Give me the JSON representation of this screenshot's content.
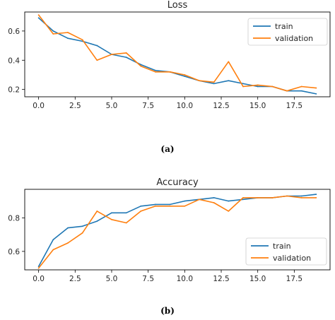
{
  "chart_data": [
    {
      "type": "line",
      "title": "Loss",
      "xlabel": "",
      "ylabel": "",
      "xlim": [
        -0.95,
        19.95
      ],
      "ylim": [
        0.15,
        0.73
      ],
      "xticks": [
        0.0,
        2.5,
        5.0,
        7.5,
        10.0,
        12.5,
        15.0,
        17.5
      ],
      "xtick_labels": [
        "0.0",
        "2.5",
        "5.0",
        "7.5",
        "10.0",
        "12.5",
        "15.0",
        "17.5"
      ],
      "yticks": [
        0.2,
        0.4,
        0.6
      ],
      "ytick_labels": [
        "0.2",
        "0.4",
        "0.6"
      ],
      "legend_position": "top-right",
      "grid": false,
      "x": [
        0,
        1,
        2,
        3,
        4,
        5,
        6,
        7,
        8,
        9,
        10,
        11,
        12,
        13,
        14,
        15,
        16,
        17,
        18,
        19
      ],
      "series": [
        {
          "name": "train",
          "color": "#1f77b4",
          "values": [
            0.69,
            0.6,
            0.55,
            0.53,
            0.5,
            0.44,
            0.42,
            0.37,
            0.33,
            0.32,
            0.29,
            0.26,
            0.24,
            0.26,
            0.24,
            0.22,
            0.22,
            0.19,
            0.19,
            0.17
          ]
        },
        {
          "name": "validation",
          "color": "#ff7f0e",
          "values": [
            0.71,
            0.58,
            0.59,
            0.54,
            0.4,
            0.44,
            0.45,
            0.36,
            0.32,
            0.32,
            0.3,
            0.26,
            0.25,
            0.39,
            0.22,
            0.23,
            0.22,
            0.19,
            0.22,
            0.21
          ]
        }
      ]
    },
    {
      "type": "line",
      "title": "Accuracy",
      "xlabel": "",
      "ylabel": "",
      "xlim": [
        -0.95,
        19.95
      ],
      "ylim": [
        0.49,
        0.97
      ],
      "xticks": [
        0.0,
        2.5,
        5.0,
        7.5,
        10.0,
        12.5,
        15.0,
        17.5
      ],
      "xtick_labels": [
        "0.0",
        "2.5",
        "5.0",
        "7.5",
        "10.0",
        "12.5",
        "15.0",
        "17.5"
      ],
      "yticks": [
        0.6,
        0.8
      ],
      "ytick_labels": [
        "0.6",
        "0.8"
      ],
      "legend_position": "bottom-right",
      "grid": false,
      "x": [
        0,
        1,
        2,
        3,
        4,
        5,
        6,
        7,
        8,
        9,
        10,
        11,
        12,
        13,
        14,
        15,
        16,
        17,
        18,
        19
      ],
      "series": [
        {
          "name": "train",
          "color": "#1f77b4",
          "values": [
            0.51,
            0.67,
            0.74,
            0.75,
            0.78,
            0.83,
            0.83,
            0.87,
            0.88,
            0.88,
            0.9,
            0.91,
            0.92,
            0.9,
            0.91,
            0.92,
            0.92,
            0.93,
            0.93,
            0.94
          ]
        },
        {
          "name": "validation",
          "color": "#ff7f0e",
          "values": [
            0.5,
            0.61,
            0.65,
            0.71,
            0.84,
            0.79,
            0.77,
            0.84,
            0.87,
            0.87,
            0.87,
            0.91,
            0.89,
            0.84,
            0.92,
            0.92,
            0.92,
            0.93,
            0.92,
            0.92
          ]
        }
      ]
    }
  ],
  "captions": {
    "a": "(a)",
    "b": "(b)"
  }
}
